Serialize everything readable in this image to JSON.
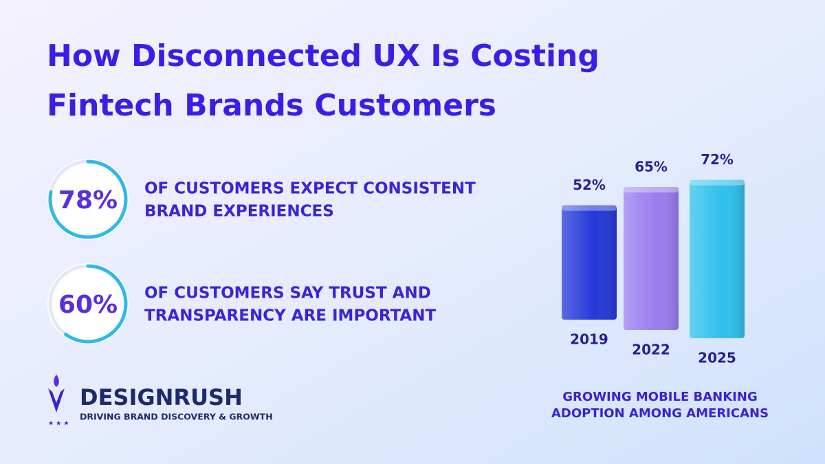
{
  "title": [
    "How Disconnected UX Is Costing",
    "Fintech Brands Customers"
  ],
  "stats": [
    {
      "value": 78,
      "label": "78%",
      "text": [
        "OF CUSTOMERS EXPECT CONSISTENT",
        "BRAND EXPERIENCES"
      ]
    },
    {
      "value": 60,
      "label": "60%",
      "text": [
        "OF CUSTOMERS SAY TRUST AND",
        "TRANSPARENCY ARE IMPORTANT"
      ]
    }
  ],
  "brand": {
    "name": "DESIGNRUSH",
    "tagline": "DRIVING BRAND DISCOVERY & GROWTH"
  },
  "chart_data": {
    "type": "bar",
    "title": [
      "GROWING MOBILE BANKING",
      "ADOPTION AMONG AMERICANS"
    ],
    "categories": [
      "2019",
      "2022",
      "2025"
    ],
    "values": [
      52,
      65,
      72
    ],
    "value_labels": [
      "52%",
      "65%",
      "72%"
    ],
    "colors": [
      "#2438d8",
      "#9a7cf0",
      "#30c0ec"
    ]
  }
}
